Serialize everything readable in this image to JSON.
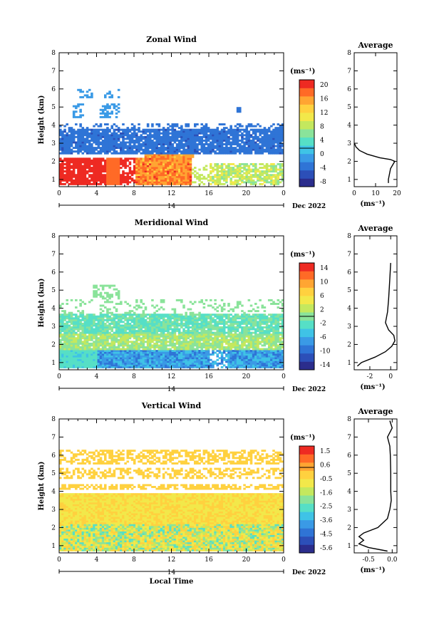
{
  "chart_data": [
    {
      "type": "heatmap",
      "title": "Zonal Wind",
      "ylabel": "Height (km)",
      "xlabel": "",
      "x_ticks": [
        "0",
        "4",
        "8",
        "12",
        "16",
        "20",
        "0"
      ],
      "y_ticks": [
        "1",
        "2",
        "3",
        "4",
        "5",
        "6",
        "7",
        "8"
      ],
      "xlim": [
        0,
        24
      ],
      "ylim": [
        0.6,
        8
      ],
      "date_label": "14",
      "month_label": "Dec 2022",
      "colorbar": {
        "unit": "(ms⁻¹)",
        "ticks": [
          "20",
          "16",
          "12",
          "8",
          "4",
          "0",
          "-4",
          "-8"
        ],
        "range": [
          -10,
          22
        ]
      },
      "profile": {
        "title": "Average",
        "xlabel": "(ms⁻¹)",
        "x_ticks": [
          "0",
          "10",
          "20"
        ],
        "xlim": [
          0,
          20
        ],
        "heights": [
          0.8,
          1.0,
          1.3,
          1.6,
          1.8,
          2.0,
          2.1,
          2.2,
          2.4,
          2.6,
          2.8,
          3.0
        ],
        "values": [
          16,
          16,
          16.5,
          17,
          18,
          19,
          17,
          12,
          6,
          2.5,
          0.8,
          0.1
        ]
      },
      "bands": [
        {
          "label": "upper westward layer",
          "x": [
            0,
            24
          ],
          "y": [
            2.3,
            3.9
          ],
          "value": -4
        },
        {
          "label": "strong low-level eastward flow",
          "x": [
            0,
            11.5
          ],
          "y": [
            0.7,
            2.2
          ],
          "value": 20
        },
        {
          "label": "eastward jet core",
          "x": [
            8,
            14.5
          ],
          "y": [
            0.7,
            2.6
          ],
          "value": 16
        },
        {
          "label": "weak eastward afternoon flow",
          "x": [
            15,
            24
          ],
          "y": [
            0.9,
            1.9
          ],
          "value": 8
        }
      ]
    },
    {
      "type": "heatmap",
      "title": "Meridional Wind",
      "ylabel": "Height (km)",
      "xlabel": "",
      "x_ticks": [
        "0",
        "4",
        "8",
        "12",
        "16",
        "20",
        "0"
      ],
      "y_ticks": [
        "1",
        "2",
        "3",
        "4",
        "5",
        "6",
        "7",
        "8"
      ],
      "xlim": [
        0,
        24
      ],
      "ylim": [
        0.6,
        8
      ],
      "date_label": "14",
      "month_label": "Dec 2022",
      "colorbar": {
        "unit": "(ms⁻¹)",
        "ticks": [
          "14",
          "10",
          "6",
          "2",
          "-2",
          "-6",
          "-10",
          "-14"
        ],
        "range": [
          -16,
          16
        ]
      },
      "profile": {
        "title": "Average",
        "xlabel": "(ms⁻¹)",
        "x_ticks": [
          "-2",
          "0"
        ],
        "xlim": [
          -3.5,
          0.6
        ],
        "heights": [
          0.8,
          1.0,
          1.3,
          1.6,
          1.9,
          2.2,
          2.5,
          2.8,
          3.2,
          3.8,
          4.5,
          5.5,
          6.5
        ],
        "values": [
          -3.2,
          -2.8,
          -1.5,
          -0.5,
          0.1,
          0.4,
          0.3,
          -0.2,
          -0.5,
          -0.3,
          -0.2,
          -0.1,
          0.0
        ]
      },
      "bands": [
        {
          "label": "weak southward upper layer",
          "x": [
            0,
            24
          ],
          "y": [
            2.6,
            3.7
          ],
          "value": -2
        },
        {
          "label": "northward mid layer",
          "x": [
            0,
            24
          ],
          "y": [
            1.6,
            2.6
          ],
          "value": 1
        },
        {
          "label": "strong southward near surface",
          "x": [
            4,
            24
          ],
          "y": [
            0.7,
            1.8
          ],
          "value": -8
        }
      ]
    },
    {
      "type": "heatmap",
      "title": "Vertical Wind",
      "ylabel": "Height (km)",
      "xlabel": "Local Time",
      "x_ticks": [
        "0",
        "4",
        "8",
        "12",
        "16",
        "20",
        "0"
      ],
      "y_ticks": [
        "1",
        "2",
        "3",
        "4",
        "5",
        "6",
        "7",
        "8"
      ],
      "xlim": [
        0,
        24
      ],
      "ylim": [
        0.6,
        8
      ],
      "date_label": "14",
      "month_label": "Dec 2022",
      "colorbar": {
        "unit": "(ms⁻¹)",
        "ticks": [
          "1.5",
          "0.6",
          "-0.5",
          "-1.6",
          "-2.5",
          "-3.6",
          "-4.5",
          "-5.6"
        ],
        "range": [
          -6,
          2
        ]
      },
      "profile": {
        "title": "Average",
        "xlabel": "(ms⁻¹)",
        "x_ticks": [
          "-0.5",
          "0.0"
        ],
        "xlim": [
          -0.8,
          0.1
        ],
        "heights": [
          0.7,
          0.9,
          1.1,
          1.3,
          1.5,
          1.7,
          2.0,
          2.5,
          3.0,
          3.5,
          4.0,
          5.0,
          6.0,
          6.5,
          7.0,
          7.5,
          7.9
        ],
        "values": [
          -0.1,
          -0.5,
          -0.7,
          -0.6,
          -0.7,
          -0.6,
          -0.3,
          -0.1,
          -0.05,
          -0.02,
          -0.03,
          -0.03,
          -0.04,
          -0.05,
          -0.1,
          0.0,
          -0.05
        ]
      },
      "bands": [
        {
          "label": "weak downward broad layer",
          "x": [
            0,
            24
          ],
          "y": [
            0.7,
            3.9
          ],
          "value": -0.5
        },
        {
          "label": "downward low-level streaks",
          "x": [
            1,
            24
          ],
          "y": [
            0.8,
            2.2
          ],
          "value": -1.6
        },
        {
          "label": "scattered upper echoes",
          "x": [
            0,
            24
          ],
          "y": [
            4.1,
            6.3
          ],
          "value": -0.3
        }
      ]
    }
  ]
}
